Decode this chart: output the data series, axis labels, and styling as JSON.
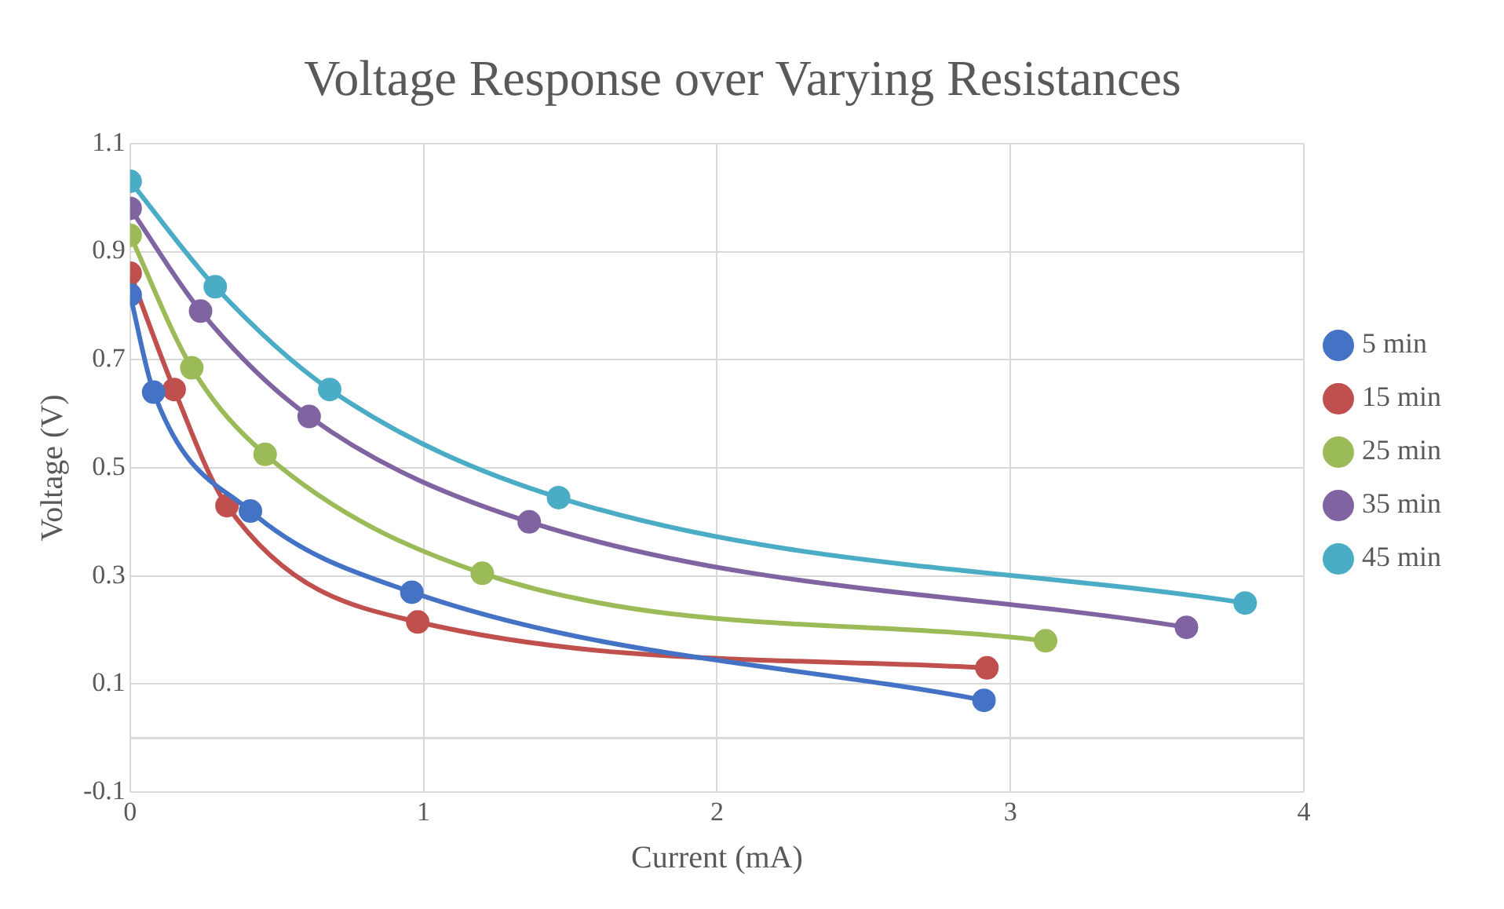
{
  "chart_data": {
    "type": "line",
    "title": "Voltage Response over Varying Resistances",
    "xlabel": "Current (mA)",
    "ylabel": "Voltage (V)",
    "series": [
      {
        "name": "5 min",
        "color": "#4472c4",
        "x": [
          0,
          0.08,
          0.41,
          0.96,
          2.91
        ],
        "values": [
          0.82,
          0.64,
          0.42,
          0.27,
          0.07
        ]
      },
      {
        "name": "15 min",
        "color": "#c0504d",
        "x": [
          0,
          0.15,
          0.33,
          0.98,
          2.92
        ],
        "values": [
          0.86,
          0.645,
          0.43,
          0.215,
          0.13
        ]
      },
      {
        "name": "25 min",
        "color": "#9bbb59",
        "x": [
          0,
          0.21,
          0.46,
          1.2,
          3.12
        ],
        "values": [
          0.93,
          0.685,
          0.525,
          0.305,
          0.18
        ]
      },
      {
        "name": "35 min",
        "color": "#8064a2",
        "x": [
          0,
          0.24,
          0.61,
          1.36,
          3.6
        ],
        "values": [
          0.98,
          0.79,
          0.595,
          0.4,
          0.205
        ]
      },
      {
        "name": "45 min",
        "color": "#4bacc6",
        "x": [
          0,
          0.29,
          0.68,
          1.46,
          3.8
        ],
        "values": [
          1.03,
          0.835,
          0.645,
          0.445,
          0.25
        ]
      }
    ],
    "xlim": [
      0,
      4
    ],
    "xticks": [
      0,
      1,
      2,
      3,
      4
    ],
    "ylim": [
      -0.1,
      1.1
    ],
    "yticks": [
      -0.1,
      0.1,
      0.3,
      0.5,
      0.7,
      0.9,
      1.1
    ],
    "ref_lines": [
      {
        "axis": "y",
        "value": 0,
        "color": "#d9d9d9"
      }
    ],
    "grid": true,
    "legend": "right",
    "marker": "circle",
    "line_style": "solid"
  }
}
